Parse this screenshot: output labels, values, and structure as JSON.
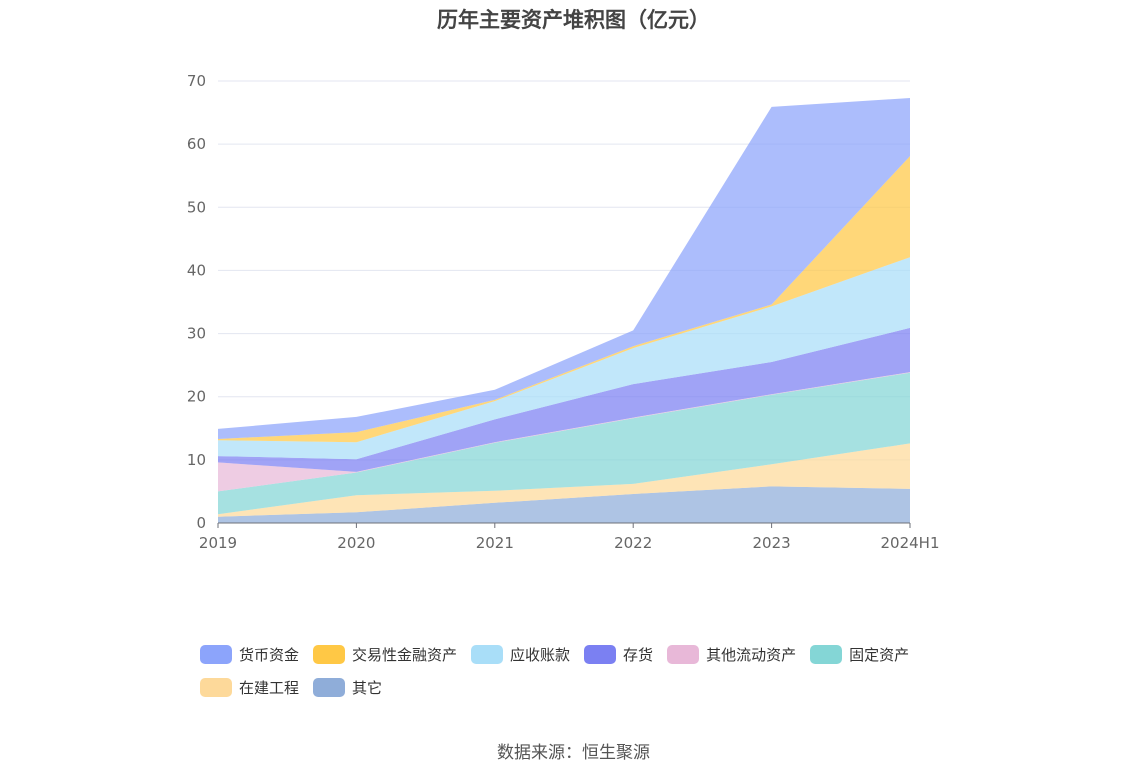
{
  "chart_data": {
    "type": "area",
    "stacked": true,
    "title": "历年主要资产堆积图（亿元）",
    "categories": [
      "2019",
      "2020",
      "2021",
      "2022",
      "2023",
      "2024H1"
    ],
    "ylim": [
      0,
      70
    ],
    "yticks": [
      0,
      10,
      20,
      30,
      40,
      50,
      60,
      70
    ],
    "grid": true,
    "legend_position": "bottom",
    "series": [
      {
        "name": "其它",
        "color": "#8fadd9",
        "values": [
          1.0,
          1.7,
          3.2,
          4.6,
          5.8,
          5.4
        ]
      },
      {
        "name": "在建工程",
        "color": "#fdd99a",
        "values": [
          0.4,
          2.7,
          1.9,
          1.6,
          3.5,
          7.2
        ]
      },
      {
        "name": "固定资产",
        "color": "#84d6d6",
        "values": [
          3.6,
          3.6,
          7.6,
          10.4,
          11.0,
          11.2
        ]
      },
      {
        "name": "其他流动资产",
        "color": "#e8b8d8",
        "values": [
          4.6,
          0.1,
          0.1,
          0.1,
          0.1,
          0.1
        ]
      },
      {
        "name": "存货",
        "color": "#7b80f2",
        "values": [
          1.0,
          2.0,
          3.6,
          5.3,
          5.1,
          7.0
        ]
      },
      {
        "name": "应收账款",
        "color": "#a9def8",
        "values": [
          2.5,
          2.7,
          2.9,
          5.7,
          8.8,
          11.2
        ]
      },
      {
        "name": "交易性金融资产",
        "color": "#ffc845",
        "values": [
          0.2,
          1.6,
          0.2,
          0.3,
          0.3,
          16.0
        ]
      },
      {
        "name": "货币资金",
        "color": "#8ca4fb",
        "values": [
          1.6,
          2.4,
          1.6,
          2.5,
          31.3,
          9.2
        ]
      }
    ]
  },
  "legend": {
    "rows": [
      [
        {
          "label": "货币资金",
          "color": "#8ca4fb"
        },
        {
          "label": "交易性金融资产",
          "color": "#ffc845"
        },
        {
          "label": "应收账款",
          "color": "#a9def8"
        },
        {
          "label": "存货",
          "color": "#7b80f2"
        },
        {
          "label": "其他流动资产",
          "color": "#e8b8d8"
        },
        {
          "label": "固定资产",
          "color": "#84d6d6"
        }
      ],
      [
        {
          "label": "在建工程",
          "color": "#fdd99a"
        },
        {
          "label": "其它",
          "color": "#8fadd9"
        }
      ]
    ]
  },
  "source": "数据来源：恒生聚源"
}
